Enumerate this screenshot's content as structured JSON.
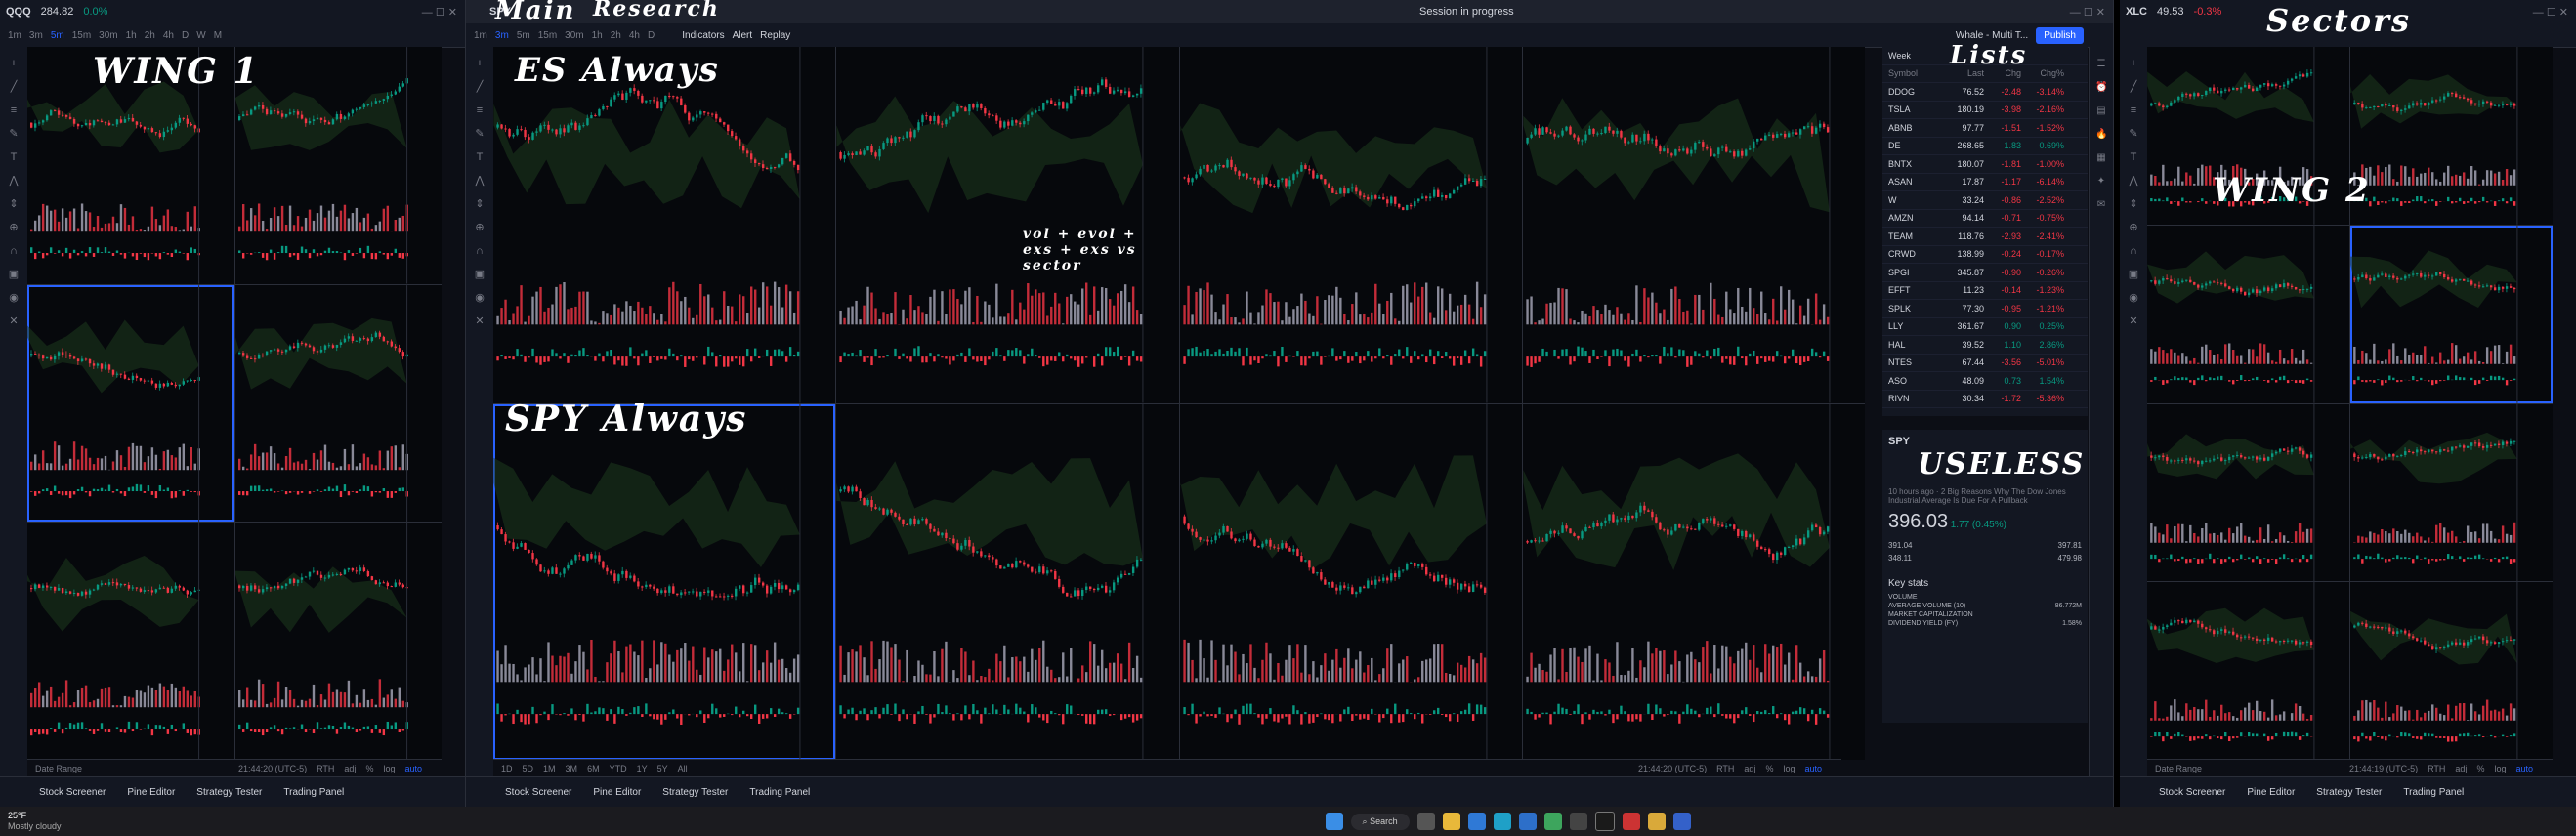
{
  "windows": {
    "left": {
      "symbol": "QQQ",
      "price": "284.82",
      "change": "0.0%",
      "timeframes": [
        "1m",
        "3m",
        "5m",
        "15m",
        "30m",
        "1h",
        "2h",
        "4h",
        "D",
        "W",
        "M"
      ],
      "active_tf": "5m",
      "annotation": "WING 1",
      "bottom_tabs": [
        "Stock Screener",
        "Pine Editor",
        "Strategy Tester",
        "Trading Panel"
      ],
      "date_range": "Date Range",
      "clock": "21:44:20 (UTC-5)",
      "session": "RTH",
      "scale_opts": [
        "adj",
        "%",
        "log",
        "auto"
      ]
    },
    "main": {
      "symbol": "SPY",
      "timeframes": [
        "1m",
        "3m",
        "5m",
        "15m",
        "30m",
        "1h",
        "2h",
        "4h",
        "D"
      ],
      "active_tf": "3m",
      "indicators_label": "Indicators",
      "alert_label": "Alert",
      "replay_label": "Replay",
      "session_status": "Session in progress",
      "publish": "Publish",
      "watchlist_title": "Whale - Multi T...",
      "annotation_main": "Main",
      "annotation_research": "Research",
      "annotation_es": "ES Always",
      "annotation_spy": "SPY Always",
      "annotation_vol": "vol + evol + exs + exs vs sector",
      "annotation_lists": "Lists",
      "annotation_useless": "USELESS",
      "ranges": [
        "1D",
        "5D",
        "1M",
        "3M",
        "6M",
        "YTD",
        "1Y",
        "5Y",
        "All"
      ],
      "bottom_tabs": [
        "Stock Screener",
        "Pine Editor",
        "Strategy Tester",
        "Trading Panel"
      ],
      "clock": "21:44:20 (UTC-5)",
      "session": "RTH",
      "scale_opts": [
        "adj",
        "%",
        "log",
        "auto"
      ]
    },
    "right": {
      "symbol": "XLC",
      "price": "49.53",
      "change": "-0.3%",
      "annotation_sectors": "Sectors",
      "annotation_wing": "WING 2",
      "date_range": "Date Range",
      "bottom_tabs": [
        "Stock Screener",
        "Pine Editor",
        "Strategy Tester",
        "Trading Panel"
      ],
      "clock": "21:44:19 (UTC-5)",
      "session": "RTH",
      "scale_opts": [
        "adj",
        "%",
        "log",
        "auto"
      ]
    }
  },
  "watchlist": {
    "header": "Week",
    "columns": [
      "Symbol",
      "Last",
      "Chg",
      "Chg%"
    ],
    "rows": [
      {
        "sym": "DDOG",
        "last": "76.52",
        "chg": "-2.48",
        "chgp": "-3.14%"
      },
      {
        "sym": "TSLA",
        "last": "180.19",
        "chg": "-3.98",
        "chgp": "-2.16%"
      },
      {
        "sym": "ABNB",
        "last": "97.77",
        "chg": "-1.51",
        "chgp": "-1.52%"
      },
      {
        "sym": "DE",
        "last": "268.65",
        "chg": "1.83",
        "chgp": "0.69%"
      },
      {
        "sym": "BNTX",
        "last": "180.07",
        "chg": "-1.81",
        "chgp": "-1.00%"
      },
      {
        "sym": "ASAN",
        "last": "17.87",
        "chg": "-1.17",
        "chgp": "-6.14%"
      },
      {
        "sym": "W",
        "last": "33.24",
        "chg": "-0.86",
        "chgp": "-2.52%"
      },
      {
        "sym": "AMZN",
        "last": "94.14",
        "chg": "-0.71",
        "chgp": "-0.75%"
      },
      {
        "sym": "TEAM",
        "last": "118.76",
        "chg": "-2.93",
        "chgp": "-2.41%"
      },
      {
        "sym": "CRWD",
        "last": "138.99",
        "chg": "-0.24",
        "chgp": "-0.17%"
      },
      {
        "sym": "SPGI",
        "last": "345.87",
        "chg": "-0.90",
        "chgp": "-0.26%"
      },
      {
        "sym": "EFFT",
        "last": "11.23",
        "chg": "-0.14",
        "chgp": "-1.23%"
      },
      {
        "sym": "SPLK",
        "last": "77.30",
        "chg": "-0.95",
        "chgp": "-1.21%"
      },
      {
        "sym": "LLY",
        "last": "361.67",
        "chg": "0.90",
        "chgp": "0.25%"
      },
      {
        "sym": "HAL",
        "last": "39.52",
        "chg": "1.10",
        "chgp": "2.86%"
      },
      {
        "sym": "NTES",
        "last": "67.44",
        "chg": "-3.56",
        "chgp": "-5.01%"
      },
      {
        "sym": "ASO",
        "last": "48.09",
        "chg": "0.73",
        "chgp": "1.54%"
      },
      {
        "sym": "RIVN",
        "last": "30.34",
        "chg": "-1.72",
        "chgp": "-5.36%"
      }
    ]
  },
  "detail": {
    "symbol": "SPY",
    "price": "396.03",
    "change": "1.77 (0.45%)",
    "news": "10 hours ago · 2 Big Reasons Why The Dow Jones Industrial Average Is Due For A Pullback",
    "day_low": "391.04",
    "day_high": "397.81",
    "year_low": "348.11",
    "year_high": "479.98",
    "key_stats_title": "Key stats",
    "stat_labels": [
      "VOLUME",
      "AVERAGE VOLUME (10)",
      "MARKET CAPITALIZATION",
      "DIVIDEND YIELD (FY)"
    ],
    "stat_values": [
      "",
      "86.772M",
      "",
      "1.58%"
    ]
  },
  "taskbar": {
    "weather_temp": "25°F",
    "weather_desc": "Mostly cloudy",
    "search": "Search"
  },
  "colors": {
    "up": "#089981",
    "down": "#f23645",
    "accent": "#2962ff",
    "cloud": "#1e3a1e"
  }
}
